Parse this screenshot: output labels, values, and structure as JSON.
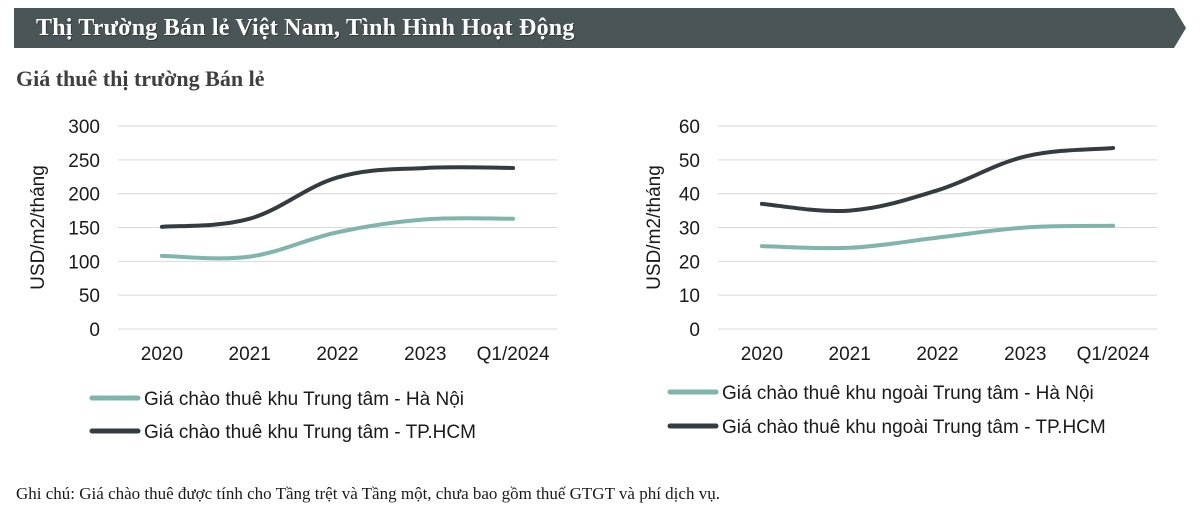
{
  "header": {
    "title": "Thị Trường Bán lẻ Việt Nam, Tình Hình Hoạt Động",
    "subtitle": "Giá thuê thị trường Bán lẻ"
  },
  "footnote": "Ghi chú: Giá chào thuê được tính cho Tầng trệt và Tầng một, chưa bao gồm thuế GTGT và phí dịch vụ.",
  "colors": {
    "banner": "#4a5558",
    "teal": "#7fb5aa",
    "dark": "#343c40",
    "grid": "#d9d9d9"
  },
  "chart_data": [
    {
      "type": "line",
      "categories": [
        "2020",
        "2021",
        "2022",
        "2023",
        "Q1/2024"
      ],
      "ylabel": "USD/m2/tháng",
      "ylim": [
        0,
        300
      ],
      "yticks": [
        0,
        50,
        100,
        150,
        200,
        250,
        300
      ],
      "grid": true,
      "legend_position": "bottom",
      "series": [
        {
          "name": "Giá chào thuê khu Trung tâm - Hà Nội",
          "values": [
            108,
            107,
            143,
            162,
            163
          ],
          "color": "#7fb5aa"
        },
        {
          "name": "Giá chào thuê khu Trung tâm - TP.HCM",
          "values": [
            151,
            163,
            224,
            238,
            238
          ],
          "color": "#343c40"
        }
      ]
    },
    {
      "type": "line",
      "categories": [
        "2020",
        "2021",
        "2022",
        "2023",
        "Q1/2024"
      ],
      "ylabel": "USD/m2/tháng",
      "ylim": [
        0,
        60
      ],
      "yticks": [
        0,
        10,
        20,
        30,
        40,
        50,
        60
      ],
      "grid": true,
      "legend_position": "bottom",
      "series": [
        {
          "name": "Giá chào thuê khu ngoài Trung tâm - Hà Nội",
          "values": [
            24.5,
            24,
            27,
            30,
            30.5
          ],
          "color": "#7fb5aa"
        },
        {
          "name": "Giá chào thuê khu ngoài Trung tâm - TP.HCM",
          "values": [
            37,
            35,
            41,
            51,
            53.5
          ],
          "color": "#343c40"
        }
      ]
    }
  ]
}
